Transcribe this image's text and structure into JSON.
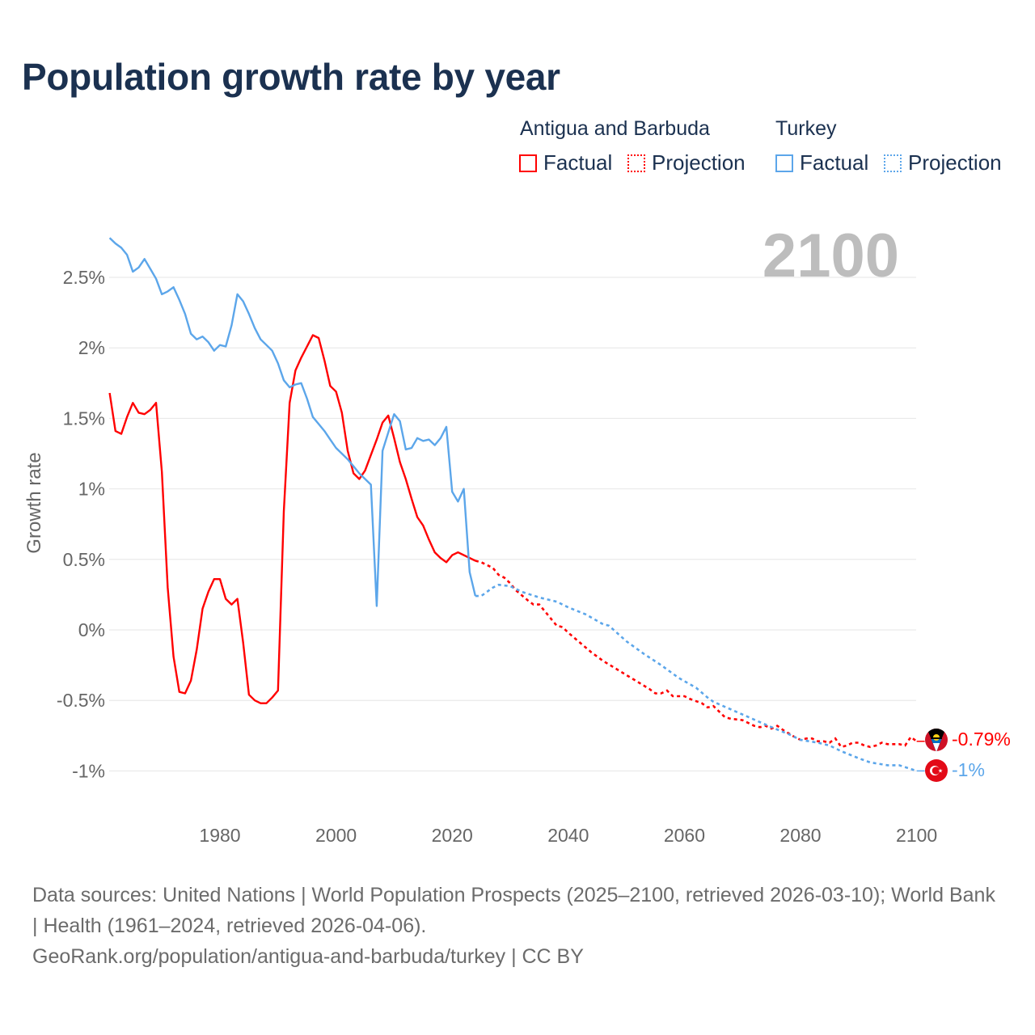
{
  "chart_data": {
    "type": "line",
    "title": "Population growth rate by year",
    "xlabel": "",
    "ylabel": "Growth rate",
    "xlim": [
      1961,
      2100
    ],
    "ylim": [
      -1.1,
      2.85
    ],
    "x_ticks": [
      1980,
      2000,
      2020,
      2040,
      2060,
      2080,
      2100
    ],
    "y_ticks": [
      -1,
      -0.5,
      0,
      0.5,
      1,
      1.5,
      2,
      2.5
    ],
    "y_tick_labels": [
      "-1%",
      "-0.5%",
      "0%",
      "0.5%",
      "1%",
      "1.5%",
      "2%",
      "2.5%"
    ],
    "grid": true,
    "legend_position": "top-right",
    "year_overlay": "2100",
    "series": [
      {
        "name": "Antigua and Barbuda",
        "color": "#ff0000",
        "end_label": "-0.79%",
        "factual": [
          [
            1961,
            1.68
          ],
          [
            1962,
            1.41
          ],
          [
            1963,
            1.39
          ],
          [
            1964,
            1.51
          ],
          [
            1965,
            1.61
          ],
          [
            1966,
            1.54
          ],
          [
            1967,
            1.53
          ],
          [
            1968,
            1.56
          ],
          [
            1969,
            1.61
          ],
          [
            1970,
            1.12
          ],
          [
            1971,
            0.3
          ],
          [
            1972,
            -0.19
          ],
          [
            1973,
            -0.44
          ],
          [
            1974,
            -0.45
          ],
          [
            1975,
            -0.36
          ],
          [
            1976,
            -0.14
          ],
          [
            1977,
            0.15
          ],
          [
            1978,
            0.27
          ],
          [
            1979,
            0.36
          ],
          [
            1980,
            0.36
          ],
          [
            1981,
            0.22
          ],
          [
            1982,
            0.18
          ],
          [
            1983,
            0.22
          ],
          [
            1984,
            -0.09
          ],
          [
            1985,
            -0.46
          ],
          [
            1986,
            -0.5
          ],
          [
            1987,
            -0.52
          ],
          [
            1988,
            -0.52
          ],
          [
            1989,
            -0.48
          ],
          [
            1990,
            -0.43
          ],
          [
            1991,
            0.84
          ],
          [
            1992,
            1.61
          ],
          [
            1993,
            1.84
          ],
          [
            1994,
            1.93
          ],
          [
            1995,
            2.01
          ],
          [
            1996,
            2.09
          ],
          [
            1997,
            2.07
          ],
          [
            1998,
            1.91
          ],
          [
            1999,
            1.73
          ],
          [
            2000,
            1.69
          ],
          [
            2001,
            1.54
          ],
          [
            2002,
            1.27
          ],
          [
            2003,
            1.11
          ],
          [
            2004,
            1.07
          ],
          [
            2005,
            1.13
          ],
          [
            2006,
            1.24
          ],
          [
            2007,
            1.35
          ],
          [
            2008,
            1.47
          ],
          [
            2009,
            1.52
          ],
          [
            2010,
            1.36
          ],
          [
            2011,
            1.19
          ],
          [
            2012,
            1.07
          ],
          [
            2013,
            0.93
          ],
          [
            2014,
            0.8
          ],
          [
            2015,
            0.74
          ],
          [
            2016,
            0.64
          ],
          [
            2017,
            0.55
          ],
          [
            2018,
            0.51
          ],
          [
            2019,
            0.48
          ],
          [
            2020,
            0.53
          ],
          [
            2021,
            0.55
          ],
          [
            2022,
            0.53
          ],
          [
            2023,
            0.51
          ],
          [
            2024,
            0.49
          ]
        ],
        "projection": [
          [
            2024,
            0.49
          ],
          [
            2025,
            0.48
          ],
          [
            2027,
            0.44
          ],
          [
            2028,
            0.39
          ],
          [
            2029,
            0.37
          ],
          [
            2030,
            0.33
          ],
          [
            2031,
            0.28
          ],
          [
            2033,
            0.21
          ],
          [
            2034,
            0.18
          ],
          [
            2035,
            0.18
          ],
          [
            2036,
            0.13
          ],
          [
            2038,
            0.03
          ],
          [
            2039,
            0.02
          ],
          [
            2040,
            -0.02
          ],
          [
            2042,
            -0.09
          ],
          [
            2044,
            -0.16
          ],
          [
            2046,
            -0.22
          ],
          [
            2048,
            -0.27
          ],
          [
            2050,
            -0.32
          ],
          [
            2052,
            -0.37
          ],
          [
            2054,
            -0.42
          ],
          [
            2055,
            -0.45
          ],
          [
            2056,
            -0.45
          ],
          [
            2057,
            -0.43
          ],
          [
            2058,
            -0.47
          ],
          [
            2060,
            -0.47
          ],
          [
            2061,
            -0.49
          ],
          [
            2063,
            -0.52
          ],
          [
            2064,
            -0.55
          ],
          [
            2065,
            -0.54
          ],
          [
            2067,
            -0.62
          ],
          [
            2068,
            -0.63
          ],
          [
            2070,
            -0.64
          ],
          [
            2071,
            -0.66
          ],
          [
            2072,
            -0.68
          ],
          [
            2073,
            -0.69
          ],
          [
            2074,
            -0.68
          ],
          [
            2075,
            -0.7
          ],
          [
            2076,
            -0.68
          ],
          [
            2077,
            -0.71
          ],
          [
            2079,
            -0.76
          ],
          [
            2080,
            -0.78
          ],
          [
            2081,
            -0.77
          ],
          [
            2082,
            -0.77
          ],
          [
            2083,
            -0.79
          ],
          [
            2084,
            -0.79
          ],
          [
            2085,
            -0.8
          ],
          [
            2086,
            -0.77
          ],
          [
            2087,
            -0.83
          ],
          [
            2088,
            -0.82
          ],
          [
            2089,
            -0.8
          ],
          [
            2090,
            -0.8
          ],
          [
            2091,
            -0.82
          ],
          [
            2092,
            -0.83
          ],
          [
            2093,
            -0.82
          ],
          [
            2094,
            -0.8
          ],
          [
            2095,
            -0.81
          ],
          [
            2096,
            -0.81
          ],
          [
            2097,
            -0.81
          ],
          [
            2098,
            -0.82
          ],
          [
            2099,
            -0.76
          ],
          [
            2100,
            -0.79
          ]
        ]
      },
      {
        "name": "Turkey",
        "color": "#5ca6ea",
        "end_label": "-1%",
        "factual": [
          [
            1961,
            2.78
          ],
          [
            1962,
            2.74
          ],
          [
            1963,
            2.71
          ],
          [
            1964,
            2.66
          ],
          [
            1965,
            2.54
          ],
          [
            1966,
            2.57
          ],
          [
            1967,
            2.63
          ],
          [
            1968,
            2.56
          ],
          [
            1969,
            2.49
          ],
          [
            1970,
            2.38
          ],
          [
            1971,
            2.4
          ],
          [
            1972,
            2.43
          ],
          [
            1973,
            2.34
          ],
          [
            1974,
            2.24
          ],
          [
            1975,
            2.1
          ],
          [
            1976,
            2.06
          ],
          [
            1977,
            2.08
          ],
          [
            1978,
            2.04
          ],
          [
            1979,
            1.98
          ],
          [
            1980,
            2.02
          ],
          [
            1981,
            2.01
          ],
          [
            1982,
            2.16
          ],
          [
            1983,
            2.38
          ],
          [
            1984,
            2.33
          ],
          [
            1985,
            2.24
          ],
          [
            1986,
            2.14
          ],
          [
            1987,
            2.06
          ],
          [
            1988,
            2.02
          ],
          [
            1989,
            1.98
          ],
          [
            1990,
            1.89
          ],
          [
            1991,
            1.77
          ],
          [
            1992,
            1.72
          ],
          [
            1993,
            1.74
          ],
          [
            1994,
            1.75
          ],
          [
            1995,
            1.64
          ],
          [
            1996,
            1.51
          ],
          [
            1997,
            1.46
          ],
          [
            1998,
            1.41
          ],
          [
            1999,
            1.35
          ],
          [
            2000,
            1.29
          ],
          [
            2001,
            1.25
          ],
          [
            2002,
            1.21
          ],
          [
            2003,
            1.16
          ],
          [
            2004,
            1.11
          ],
          [
            2005,
            1.07
          ],
          [
            2006,
            1.03
          ],
          [
            2007,
            0.17
          ],
          [
            2008,
            1.27
          ],
          [
            2009,
            1.4
          ],
          [
            2010,
            1.53
          ],
          [
            2011,
            1.48
          ],
          [
            2012,
            1.28
          ],
          [
            2013,
            1.29
          ],
          [
            2014,
            1.36
          ],
          [
            2015,
            1.34
          ],
          [
            2016,
            1.35
          ],
          [
            2017,
            1.31
          ],
          [
            2018,
            1.36
          ],
          [
            2019,
            1.44
          ],
          [
            2020,
            0.98
          ],
          [
            2021,
            0.91
          ],
          [
            2022,
            1.0
          ],
          [
            2023,
            0.41
          ],
          [
            2024,
            0.24
          ]
        ],
        "projection": [
          [
            2024,
            0.24
          ],
          [
            2025,
            0.24
          ],
          [
            2027,
            0.3
          ],
          [
            2028,
            0.32
          ],
          [
            2030,
            0.31
          ],
          [
            2032,
            0.27
          ],
          [
            2035,
            0.23
          ],
          [
            2038,
            0.2
          ],
          [
            2040,
            0.16
          ],
          [
            2043,
            0.11
          ],
          [
            2046,
            0.04
          ],
          [
            2047,
            0.03
          ],
          [
            2050,
            -0.08
          ],
          [
            2053,
            -0.17
          ],
          [
            2056,
            -0.25
          ],
          [
            2059,
            -0.34
          ],
          [
            2062,
            -0.41
          ],
          [
            2064,
            -0.48
          ],
          [
            2065,
            -0.51
          ],
          [
            2070,
            -0.6
          ],
          [
            2075,
            -0.69
          ],
          [
            2078,
            -0.74
          ],
          [
            2080,
            -0.78
          ],
          [
            2083,
            -0.8
          ],
          [
            2085,
            -0.82
          ],
          [
            2087,
            -0.86
          ],
          [
            2090,
            -0.91
          ],
          [
            2092,
            -0.94
          ],
          [
            2095,
            -0.96
          ],
          [
            2097,
            -0.96
          ],
          [
            2100,
            -1.0
          ]
        ]
      }
    ]
  },
  "legend": {
    "groups": [
      {
        "title": "Antigua and Barbuda",
        "factual": "Factual",
        "projection": "Projection"
      },
      {
        "title": "Turkey",
        "factual": "Factual",
        "projection": "Projection"
      }
    ]
  },
  "footer": {
    "sources": "Data sources: United Nations | World Population Prospects (2025–2100, retrieved 2026-03-10); World Bank | Health (1961–2024, retrieved 2026-04-06).",
    "credit": "GeoRank.org/population/antigua-and-barbuda/turkey | CC BY"
  },
  "icons": {
    "antigua_flag": "antigua-and-barbuda-flag-icon",
    "turkey_flag": "turkey-flag-icon"
  }
}
